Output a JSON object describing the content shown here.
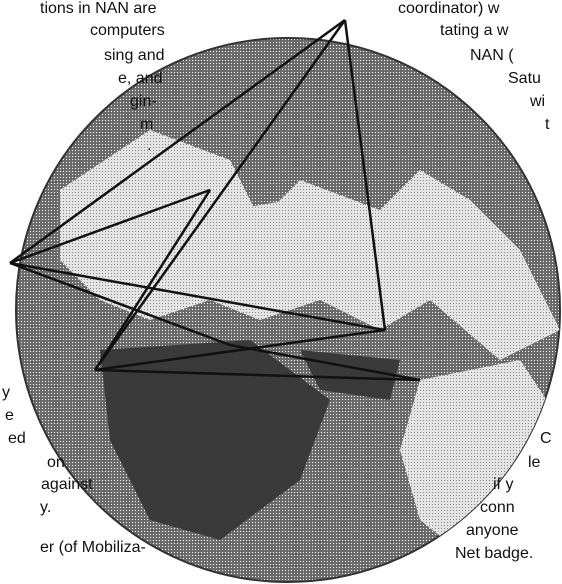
{
  "left_column": {
    "lines": [
      "tions in NAN are",
      "computers",
      "sing and",
      "e, and",
      "gin-",
      "m",
      ".",
      "y",
      "e",
      "ed",
      "on",
      "against",
      "y.",
      "er (of Mobiliza-"
    ]
  },
  "right_column": {
    "lines": [
      "coordinator) w",
      "tating a w",
      "NAN (",
      "Satu",
      "wi",
      "t",
      "C",
      "le",
      "if y",
      "conn",
      "anyone",
      "Net badge."
    ]
  }
}
